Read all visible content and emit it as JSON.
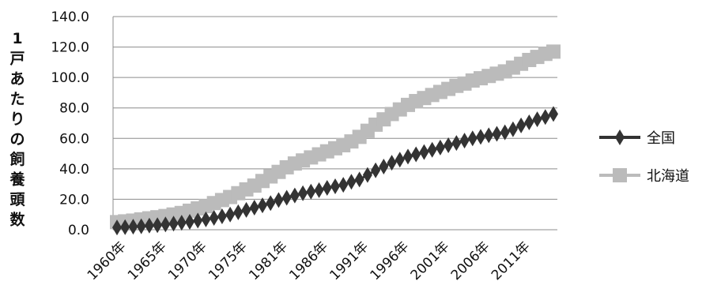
{
  "chart_data": {
    "type": "line",
    "ylabel": "1戸あたりの飼養頭数",
    "ylim": [
      0,
      140
    ],
    "y_ticks": [
      "0.0",
      "20.0",
      "40.0",
      "60.0",
      "80.0",
      "100.0",
      "120.0",
      "140.0"
    ],
    "x_tick_labels": [
      "1960年",
      "1965年",
      "1970年",
      "1975年",
      "1981年",
      "1986年",
      "1991年",
      "1996年",
      "2001年",
      "2006年",
      "2011年"
    ],
    "x": [
      "1960年",
      "1961年",
      "1962年",
      "1963年",
      "1964年",
      "1965年",
      "1966年",
      "1967年",
      "1968年",
      "1969年",
      "1970年",
      "1971年",
      "1972年",
      "1973年",
      "1974年",
      "1975年",
      "1976年",
      "1977年",
      "1978年",
      "1979年",
      "1981年",
      "1982年",
      "1983年",
      "1984年",
      "1985年",
      "1986年",
      "1987年",
      "1988年",
      "1989年",
      "1990年",
      "1991年",
      "1992年",
      "1993年",
      "1994年",
      "1995年",
      "1996年",
      "1997年",
      "1998年",
      "1999年",
      "2000年",
      "2001年",
      "2002年",
      "2003年",
      "2004年",
      "2005年",
      "2006年",
      "2007年",
      "2008年",
      "2009年",
      "2010年",
      "2011年",
      "2012年",
      "2013年",
      "2014年",
      "2015年"
    ],
    "grid": true,
    "legend_position": "right",
    "series": [
      {
        "name": "全国",
        "color": "#333333",
        "marker": "diamond",
        "values": [
          1.5,
          1.7,
          2.0,
          2.3,
          2.7,
          3.0,
          3.5,
          4.0,
          4.6,
          5.2,
          6.0,
          6.8,
          7.8,
          8.8,
          10.0,
          11.5,
          13.0,
          14.5,
          16.0,
          17.5,
          19.5,
          21.0,
          22.5,
          24.0,
          25.0,
          26.0,
          27.5,
          28.5,
          29.5,
          31.5,
          33.0,
          36.0,
          39.0,
          41.5,
          44.0,
          46.0,
          48.0,
          49.5,
          51.0,
          52.5,
          54.0,
          55.5,
          57.0,
          58.5,
          60.0,
          61.0,
          62.0,
          63.0,
          64.0,
          66.0,
          68.5,
          70.5,
          72.5,
          74.0,
          76.0
        ]
      },
      {
        "name": "北海道",
        "color": "#bbbbbb",
        "marker": "square",
        "values": [
          5.0,
          5.5,
          6.0,
          6.8,
          7.5,
          8.2,
          9.0,
          10.0,
          11.0,
          12.5,
          14.0,
          15.5,
          17.5,
          19.5,
          21.5,
          24.0,
          26.5,
          29.0,
          32.0,
          35.0,
          38.0,
          41.0,
          43.5,
          45.5,
          47.5,
          49.5,
          51.5,
          53.5,
          55.5,
          58.0,
          61.0,
          65.0,
          69.0,
          72.5,
          76.0,
          79.0,
          82.0,
          84.5,
          86.5,
          88.5,
          90.5,
          92.5,
          94.5,
          96.0,
          98.0,
          99.5,
          101.0,
          102.5,
          104.0,
          106.5,
          109.0,
          111.5,
          113.5,
          115.5,
          117.0
        ]
      }
    ]
  }
}
